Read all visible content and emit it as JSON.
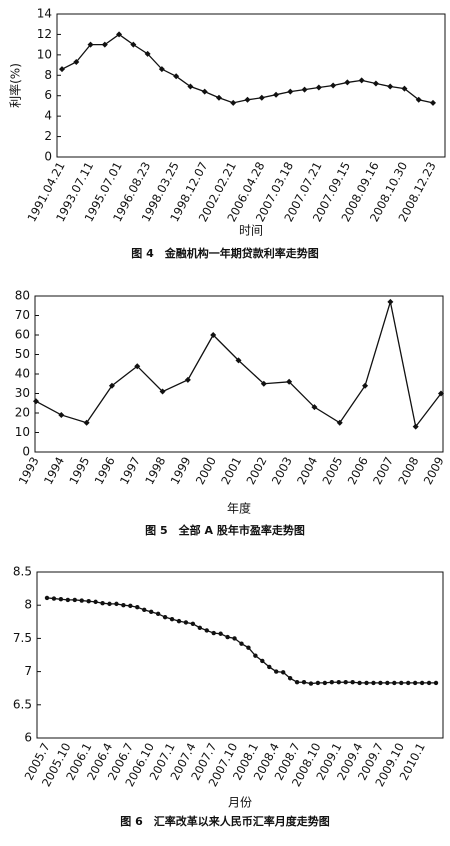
{
  "chart_data": [
    {
      "type": "line",
      "xlabel": "时间",
      "ylabel": "利率(%)",
      "caption": "图 4　金融机构一年期贷款利率走势图",
      "color": "#111111",
      "marker": "diamond",
      "grid": false,
      "categories": [
        "1991.04.21",
        null,
        "1993.07.11",
        null,
        "1995.07.01",
        null,
        "1996.08.23",
        null,
        "1998.03.25",
        null,
        "1998.12.07",
        null,
        "2002.02.21",
        null,
        "2006.04.28",
        null,
        "2007.03.18",
        null,
        "2007.07.21",
        null,
        "2007.09.15",
        null,
        "2008.09.16",
        null,
        "2008.10.30",
        null,
        "2008.12.23"
      ],
      "values": [
        8.6,
        9.3,
        11,
        11,
        12,
        11,
        10.1,
        8.6,
        7.9,
        6.9,
        6.4,
        5.8,
        5.3,
        5.6,
        5.8,
        6.1,
        6.4,
        6.6,
        6.8,
        7.0,
        7.3,
        7.5,
        7.2,
        6.9,
        6.7,
        5.6,
        5.3
      ],
      "ylim": [
        0,
        14
      ],
      "yticks": [
        0,
        2,
        4,
        6,
        8,
        10,
        12,
        14
      ]
    },
    {
      "type": "line",
      "xlabel": "年度",
      "caption": "图 5　全部 A 股年市盈率走势图",
      "color": "#111111",
      "marker": "diamond",
      "grid": false,
      "categories": [
        "1993",
        "1994",
        "1995",
        "1996",
        "1997",
        "1998",
        "1999",
        "2000",
        "2001",
        "2002",
        "2003",
        "2004",
        "2005",
        "2006",
        "2007",
        "2008",
        "2009"
      ],
      "values": [
        26,
        19,
        15,
        34,
        44,
        31,
        37,
        60,
        47,
        35,
        36,
        23,
        15,
        34,
        77,
        13,
        30
      ],
      "ylim": [
        0,
        80
      ],
      "yticks": [
        0,
        10,
        20,
        30,
        40,
        50,
        60,
        70,
        80
      ]
    },
    {
      "type": "line",
      "xlabel": "月份",
      "caption": "图 6　汇率改革以来人民币汇率月度走势图",
      "color": "#111111",
      "marker": "dot",
      "grid": false,
      "categories": [
        "2005.7",
        null,
        null,
        "2005.10",
        null,
        null,
        "2006.1",
        null,
        null,
        "2006.4",
        null,
        null,
        "2006.7",
        null,
        null,
        "2006.10",
        null,
        null,
        "2007.1",
        null,
        null,
        "2007.4",
        null,
        null,
        "2007.7",
        null,
        null,
        "2007.10",
        null,
        null,
        "2008.1",
        null,
        null,
        "2008.4",
        null,
        null,
        "2008.7",
        null,
        null,
        "2008.10",
        null,
        null,
        "2009.1",
        null,
        null,
        "2009.4",
        null,
        null,
        "2009.7",
        null,
        null,
        "2009.10",
        null,
        null,
        "2010.1",
        null,
        null
      ],
      "values": [
        8.11,
        8.1,
        8.09,
        8.08,
        8.08,
        8.07,
        8.06,
        8.05,
        8.03,
        8.02,
        8.02,
        8.0,
        7.99,
        7.97,
        7.93,
        7.9,
        7.87,
        7.82,
        7.79,
        7.76,
        7.74,
        7.72,
        7.66,
        7.62,
        7.58,
        7.57,
        7.52,
        7.5,
        7.42,
        7.36,
        7.24,
        7.16,
        7.07,
        7.0,
        6.99,
        6.9,
        6.84,
        6.84,
        6.82,
        6.83,
        6.83,
        6.84,
        6.84,
        6.84,
        6.84,
        6.83,
        6.83,
        6.83,
        6.83,
        6.83,
        6.83,
        6.83,
        6.83,
        6.83,
        6.83,
        6.83,
        6.83
      ],
      "ylim": [
        6,
        8.5
      ],
      "yticks": [
        6,
        6.5,
        7,
        7.5,
        8,
        8.5
      ]
    }
  ]
}
